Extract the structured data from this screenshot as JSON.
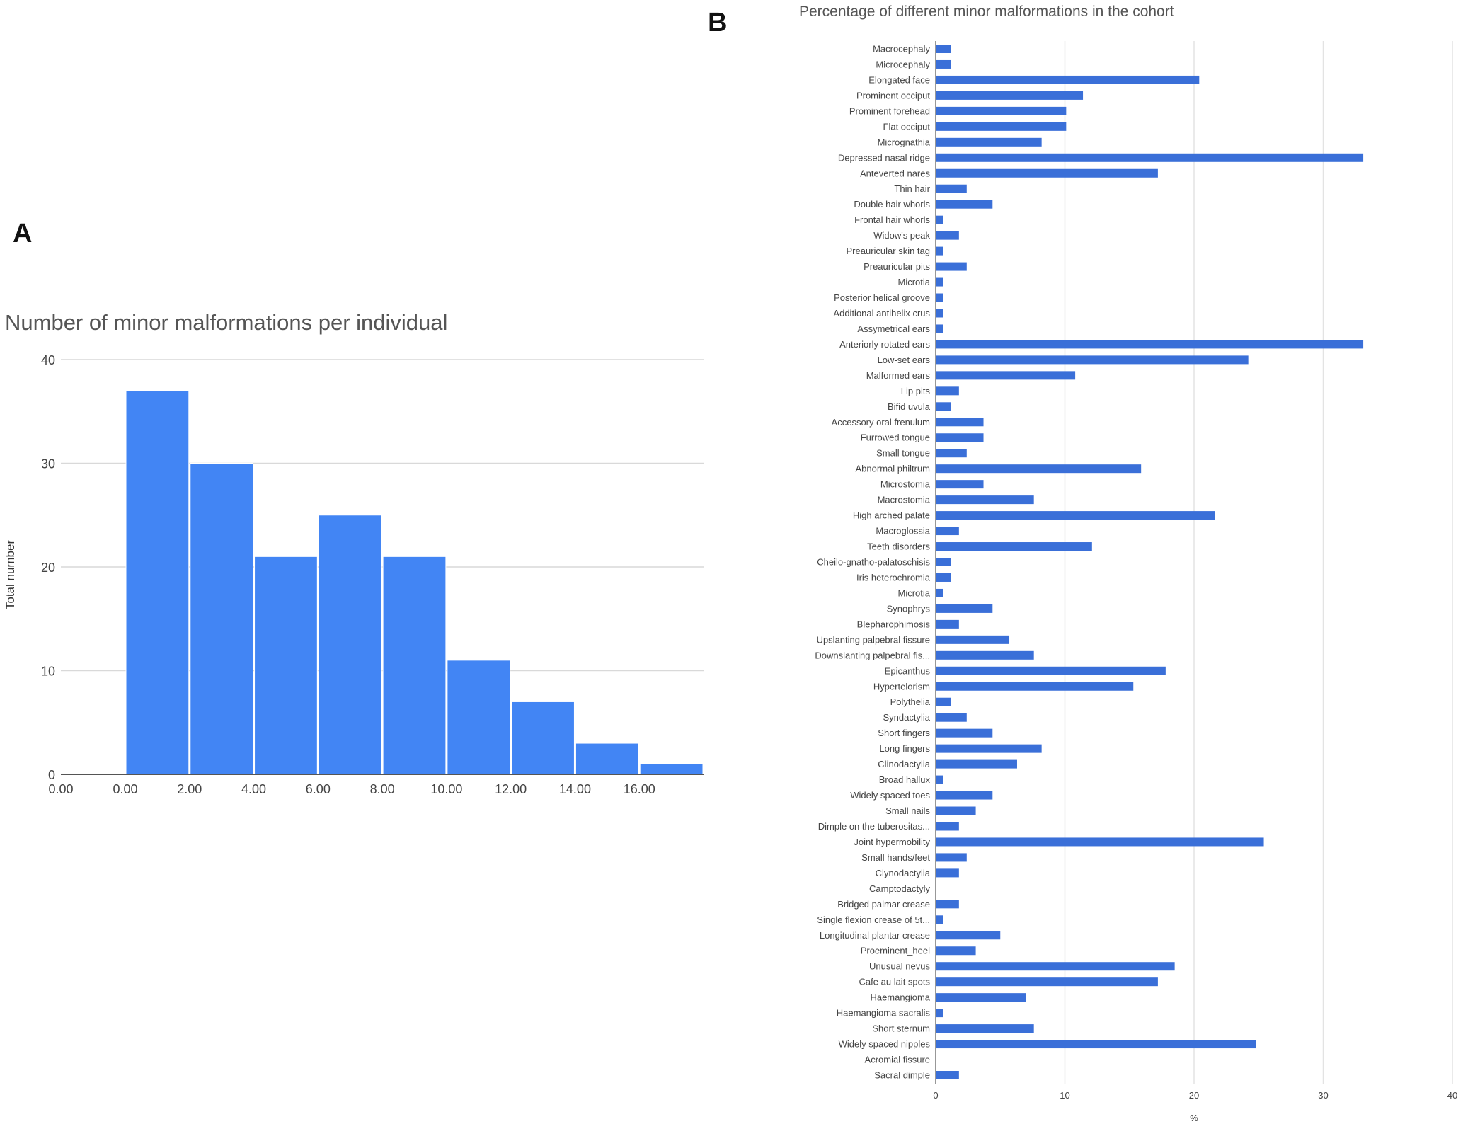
{
  "chart_data": [
    {
      "panel": "A",
      "type": "bar",
      "title": "Number of minor malformations per individual",
      "xlabel": "",
      "ylabel": "Total number",
      "x_ticks": [
        "0.00",
        "0.00",
        "2.00",
        "4.00",
        "6.00",
        "8.00",
        "10.00",
        "12.00",
        "14.00",
        "16.00"
      ],
      "bin_edges": [
        0,
        2,
        4,
        6,
        8,
        10,
        12,
        14,
        16
      ],
      "values": [
        37,
        30,
        21,
        25,
        21,
        11,
        7,
        3,
        1
      ],
      "ylim": [
        0,
        40
      ],
      "y_ticks": [
        "0",
        "10",
        "20",
        "30",
        "40"
      ],
      "grid": true,
      "color": "#4285f4"
    },
    {
      "panel": "B",
      "type": "bar",
      "orientation": "horizontal",
      "title": "Percentage of different minor malformations in the cohort",
      "xlabel": "%",
      "ylabel": "",
      "xlim": [
        0,
        40
      ],
      "x_ticks": [
        "0",
        "10",
        "20",
        "30",
        "40"
      ],
      "grid": true,
      "color": "#3a6fd8",
      "categories": [
        "Macrocephaly",
        "Microcephaly",
        "Elongated face",
        "Prominent occiput",
        "Prominent forehead",
        "Flat occiput",
        "Micrognathia",
        "Depressed nasal ridge",
        "Anteverted nares",
        "Thin hair",
        "Double hair whorls",
        "Frontal hair whorls",
        "Widow's peak",
        "Preauricular skin tag",
        "Preauricular pits",
        "Microtia",
        "Posterior helical groove",
        "Additional antihelix crus",
        "Assymetrical ears",
        "Anteriorly rotated ears",
        "Low-set ears",
        "Malformed ears",
        "Lip pits",
        "Bifid uvula",
        "Accessory oral frenulum",
        "Furrowed tongue",
        "Small tongue",
        "Abnormal philtrum",
        "Microstomia",
        "Macrostomia",
        "High arched palate",
        "Macroglossia",
        "Teeth disorders",
        "Cheilo-gnatho-palatoschisis",
        "Iris heterochromia",
        "Microtia",
        "Synophrys",
        "Blepharophimosis",
        "Upslanting palpebral fissure",
        "Downslanting palpebral fis...",
        "Epicanthus",
        "Hypertelorism",
        "Polythelia",
        "Syndactylia",
        "Short fingers",
        "Long fingers",
        "Clinodactylia",
        "Broad hallux",
        "Widely spaced toes",
        "Small nails",
        "Dimple on the tuberositas...",
        "Joint hypermobility",
        "Small hands/feet",
        "Clynodactylia",
        "Camptodactyly",
        "Bridged palmar crease",
        "Single flexion crease of 5t...",
        "Longitudinal plantar crease",
        "Proeminent_heel",
        "Unusual nevus",
        "Cafe au lait spots",
        "Haemangioma",
        "Haemangioma sacralis",
        "Short sternum",
        "Widely spaced nipples",
        "Acromial fissure",
        "Sacral dimple"
      ],
      "values": [
        1.2,
        1.2,
        20.4,
        11.4,
        10.1,
        10.1,
        8.2,
        33.1,
        17.2,
        2.4,
        4.4,
        0.6,
        1.8,
        0.6,
        2.4,
        0.6,
        0.6,
        0.6,
        0.6,
        33.1,
        24.2,
        10.8,
        1.8,
        1.2,
        3.7,
        3.7,
        2.4,
        15.9,
        3.7,
        7.6,
        21.6,
        1.8,
        12.1,
        1.2,
        1.2,
        0.6,
        4.4,
        1.8,
        5.7,
        7.6,
        17.8,
        15.3,
        1.2,
        2.4,
        4.4,
        8.2,
        6.3,
        0.6,
        4.4,
        3.1,
        1.8,
        25.4,
        2.4,
        1.8,
        0,
        1.8,
        0.6,
        5.0,
        3.1,
        18.5,
        17.2,
        7.0,
        0.6,
        7.6,
        24.8,
        0,
        1.8
      ]
    }
  ],
  "panel_labels": {
    "a": "A",
    "b": "B"
  }
}
